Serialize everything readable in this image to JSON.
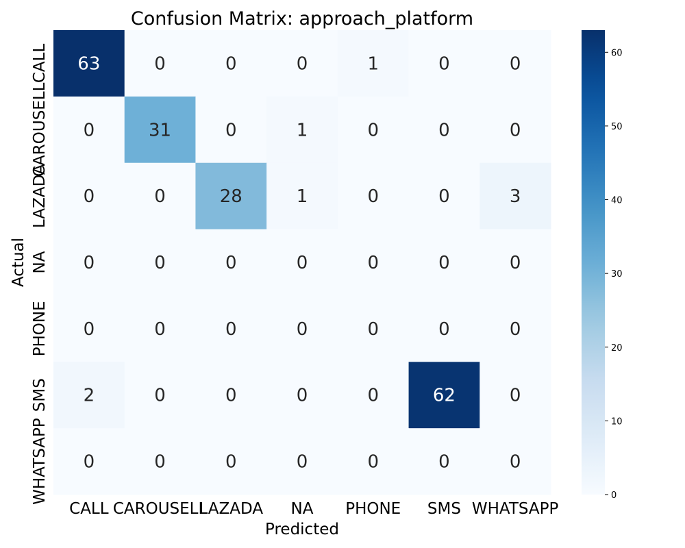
{
  "chart_data": {
    "type": "heatmap",
    "title": "Confusion Matrix: approach_platform",
    "xlabel": "Predicted",
    "ylabel": "Actual",
    "x_categories": [
      "CALL",
      "CAROUSELL",
      "LAZADA",
      "NA",
      "PHONE",
      "SMS",
      "WHATSAPP"
    ],
    "y_categories": [
      "CALL",
      "CAROUSELL",
      "LAZADA",
      "NA",
      "PHONE",
      "SMS",
      "WHATSAPP"
    ],
    "values": [
      [
        63,
        0,
        0,
        0,
        1,
        0,
        0
      ],
      [
        0,
        31,
        0,
        1,
        0,
        0,
        0
      ],
      [
        0,
        0,
        28,
        1,
        0,
        0,
        3
      ],
      [
        0,
        0,
        0,
        0,
        0,
        0,
        0
      ],
      [
        0,
        0,
        0,
        0,
        0,
        0,
        0
      ],
      [
        2,
        0,
        0,
        0,
        0,
        62,
        0
      ],
      [
        0,
        0,
        0,
        0,
        0,
        0,
        0
      ]
    ],
    "colormap": "Blues",
    "colorbar": {
      "vmin": 0,
      "vmax": 63,
      "ticks": [
        0,
        10,
        20,
        30,
        40,
        50,
        60
      ]
    }
  }
}
